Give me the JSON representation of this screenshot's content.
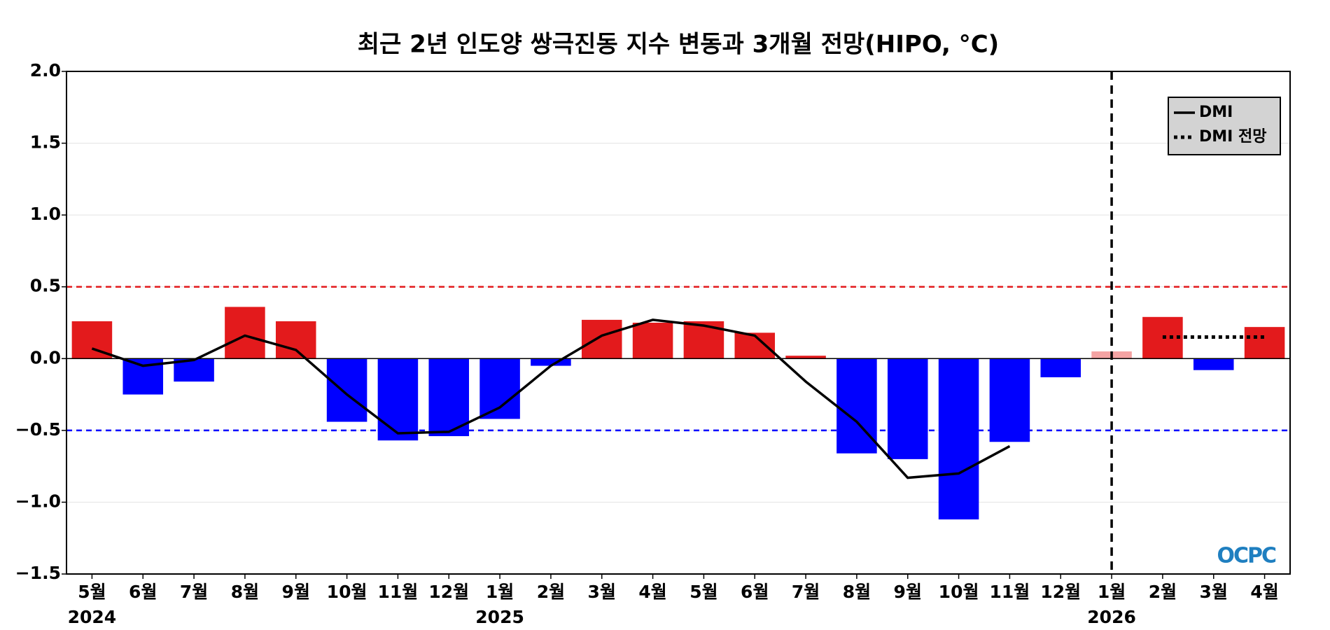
{
  "chart_data": {
    "type": "bar",
    "title": "최근 2년 인도양 쌍극진동 지수 변동과 3개월 전망(HIPO, °C)",
    "categories": [
      "5월",
      "6월",
      "7월",
      "8월",
      "9월",
      "10월",
      "11월",
      "12월",
      "1월",
      "2월",
      "3월",
      "4월",
      "5월",
      "6월",
      "7월",
      "8월",
      "9월",
      "10월",
      "11월",
      "12월",
      "1월",
      "2월",
      "3월",
      "4월"
    ],
    "values": [
      0.26,
      -0.25,
      -0.16,
      0.36,
      0.26,
      -0.44,
      -0.57,
      -0.54,
      -0.42,
      -0.05,
      0.27,
      0.25,
      0.26,
      0.18,
      0.02,
      -0.66,
      -0.7,
      -1.12,
      -0.58,
      -0.13,
      0.05,
      0.29,
      -0.08,
      0.22
    ],
    "colors": [
      "#e31a1c",
      "#0000ff",
      "#0000ff",
      "#e31a1c",
      "#e31a1c",
      "#0000ff",
      "#0000ff",
      "#0000ff",
      "#0000ff",
      "#0000ff",
      "#e31a1c",
      "#e31a1c",
      "#e31a1c",
      "#e31a1c",
      "#e31a1c",
      "#0000ff",
      "#0000ff",
      "#0000ff",
      "#0000ff",
      "#0000ff",
      "#f4a3a3",
      "#e31a1c",
      "#0000ff",
      "#e31a1c"
    ],
    "series": [
      {
        "name": "DMI",
        "color": "#000000",
        "style": "solid",
        "values": [
          0.07,
          -0.05,
          -0.01,
          0.16,
          0.06,
          -0.25,
          -0.52,
          -0.51,
          -0.34,
          -0.05,
          0.16,
          0.27,
          0.23,
          0.16,
          -0.16,
          -0.44,
          -0.83,
          -0.8,
          -0.61,
          null,
          null,
          null,
          null,
          null
        ]
      },
      {
        "name": "DMI 전망",
        "color": "#000000",
        "style": "dotted",
        "values": [
          null,
          null,
          null,
          null,
          null,
          null,
          null,
          null,
          null,
          null,
          null,
          null,
          null,
          null,
          null,
          null,
          null,
          null,
          null,
          null,
          null,
          0.15,
          0.15,
          0.15
        ]
      }
    ],
    "years": [
      {
        "label": "2024",
        "index": 0
      },
      {
        "label": "2025",
        "index": 8
      },
      {
        "label": "2026",
        "index": 20
      }
    ],
    "ylim": [
      -1.5,
      2.0
    ],
    "yticks": [
      {
        "value": -1.5,
        "label": "−1.5"
      },
      {
        "value": -1.0,
        "label": "−1.0"
      },
      {
        "value": -0.5,
        "label": "−0.5"
      },
      {
        "value": 0,
        "label": "0.0"
      },
      0.5,
      {
        "value": 1.0,
        "label": "1.0"
      },
      1.5,
      {
        "value": 2.0,
        "label": "2.0"
      }
    ],
    "grid": true,
    "hlines": [
      {
        "value": 0.5,
        "color": "#e31a1c"
      },
      {
        "value": -0.5,
        "color": "#0000ff"
      }
    ],
    "vline_index": 20,
    "legend": "upper right",
    "logo": "OCPC"
  }
}
